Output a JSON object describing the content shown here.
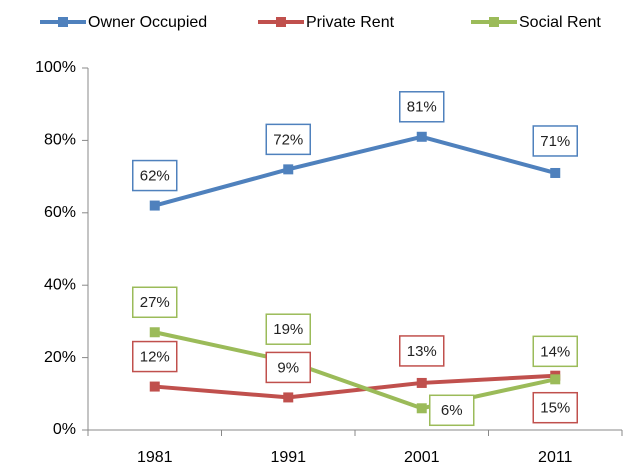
{
  "chart_data": {
    "type": "line",
    "categories": [
      "1981",
      "1991",
      "2001",
      "2011"
    ],
    "series": [
      {
        "name": "Owner Occupied",
        "color": "#4f81bd",
        "values": [
          62,
          72,
          81,
          71
        ],
        "value_labels": [
          "62%",
          "72%",
          "81%",
          "71%"
        ]
      },
      {
        "name": "Private Rent",
        "color": "#c0504d",
        "values": [
          12,
          9,
          13,
          15
        ],
        "value_labels": [
          "12%",
          "9%",
          "13%",
          "15%"
        ]
      },
      {
        "name": "Social Rent",
        "color": "#9bbb59",
        "values": [
          27,
          19,
          6,
          14
        ],
        "value_labels": [
          "27%",
          "19%",
          "6%",
          "14%"
        ]
      }
    ],
    "ylim": [
      0,
      100
    ],
    "yticks": [
      {
        "value": 0,
        "label": "0%"
      },
      {
        "value": 20,
        "label": "20%"
      },
      {
        "value": 40,
        "label": "40%"
      },
      {
        "value": 60,
        "label": "60%"
      },
      {
        "value": 80,
        "label": "80%"
      },
      {
        "value": 100,
        "label": "100%"
      }
    ],
    "grid": false,
    "legend": "top"
  }
}
